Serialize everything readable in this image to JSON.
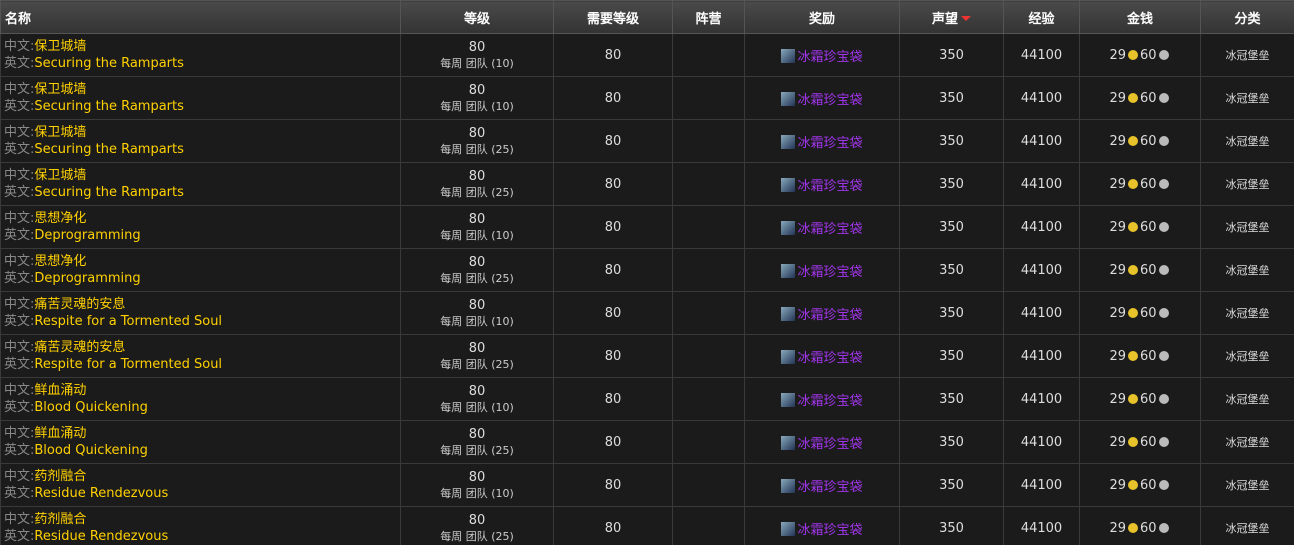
{
  "header": [
    "名称",
    "等级",
    "需要等级",
    "阵营",
    "奖励",
    "声望",
    "经验",
    "金钱",
    "分类"
  ],
  "labels": {
    "cn": "中文:",
    "en": "英文:"
  },
  "rows": [
    {
      "cn": "保卫城墙",
      "en": "Securing the Ramparts",
      "level": 80,
      "mode": "每周 团队 (10)",
      "req": 80,
      "reward": "冰霜珍宝袋",
      "rep": 350,
      "xp": 44100,
      "gold": 29,
      "silver": 60,
      "category": "冰冠堡垒"
    },
    {
      "cn": "保卫城墙",
      "en": "Securing the Ramparts",
      "level": 80,
      "mode": "每周 团队 (10)",
      "req": 80,
      "reward": "冰霜珍宝袋",
      "rep": 350,
      "xp": 44100,
      "gold": 29,
      "silver": 60,
      "category": "冰冠堡垒"
    },
    {
      "cn": "保卫城墙",
      "en": "Securing the Ramparts",
      "level": 80,
      "mode": "每周 团队 (25)",
      "req": 80,
      "reward": "冰霜珍宝袋",
      "rep": 350,
      "xp": 44100,
      "gold": 29,
      "silver": 60,
      "category": "冰冠堡垒"
    },
    {
      "cn": "保卫城墙",
      "en": "Securing the Ramparts",
      "level": 80,
      "mode": "每周 团队 (25)",
      "req": 80,
      "reward": "冰霜珍宝袋",
      "rep": 350,
      "xp": 44100,
      "gold": 29,
      "silver": 60,
      "category": "冰冠堡垒"
    },
    {
      "cn": "思想净化",
      "en": "Deprogramming",
      "level": 80,
      "mode": "每周 团队 (10)",
      "req": 80,
      "reward": "冰霜珍宝袋",
      "rep": 350,
      "xp": 44100,
      "gold": 29,
      "silver": 60,
      "category": "冰冠堡垒"
    },
    {
      "cn": "思想净化",
      "en": "Deprogramming",
      "level": 80,
      "mode": "每周 团队 (25)",
      "req": 80,
      "reward": "冰霜珍宝袋",
      "rep": 350,
      "xp": 44100,
      "gold": 29,
      "silver": 60,
      "category": "冰冠堡垒"
    },
    {
      "cn": "痛苦灵魂的安息",
      "en": "Respite for a Tormented Soul",
      "level": 80,
      "mode": "每周 团队 (10)",
      "req": 80,
      "reward": "冰霜珍宝袋",
      "rep": 350,
      "xp": 44100,
      "gold": 29,
      "silver": 60,
      "category": "冰冠堡垒"
    },
    {
      "cn": "痛苦灵魂的安息",
      "en": "Respite for a Tormented Soul",
      "level": 80,
      "mode": "每周 团队 (25)",
      "req": 80,
      "reward": "冰霜珍宝袋",
      "rep": 350,
      "xp": 44100,
      "gold": 29,
      "silver": 60,
      "category": "冰冠堡垒"
    },
    {
      "cn": "鲜血涌动",
      "en": "Blood Quickening",
      "level": 80,
      "mode": "每周 团队 (10)",
      "req": 80,
      "reward": "冰霜珍宝袋",
      "rep": 350,
      "xp": 44100,
      "gold": 29,
      "silver": 60,
      "category": "冰冠堡垒"
    },
    {
      "cn": "鲜血涌动",
      "en": "Blood Quickening",
      "level": 80,
      "mode": "每周 团队 (25)",
      "req": 80,
      "reward": "冰霜珍宝袋",
      "rep": 350,
      "xp": 44100,
      "gold": 29,
      "silver": 60,
      "category": "冰冠堡垒"
    },
    {
      "cn": "药剂融合",
      "en": "Residue Rendezvous",
      "level": 80,
      "mode": "每周 团队 (10)",
      "req": 80,
      "reward": "冰霜珍宝袋",
      "rep": 350,
      "xp": 44100,
      "gold": 29,
      "silver": 60,
      "category": "冰冠堡垒"
    },
    {
      "cn": "药剂融合",
      "en": "Residue Rendezvous",
      "level": 80,
      "mode": "每周 团队 (25)",
      "req": 80,
      "reward": "冰霜珍宝袋",
      "rep": 350,
      "xp": 44100,
      "gold": 29,
      "silver": 60,
      "category": "冰冠堡垒"
    }
  ]
}
